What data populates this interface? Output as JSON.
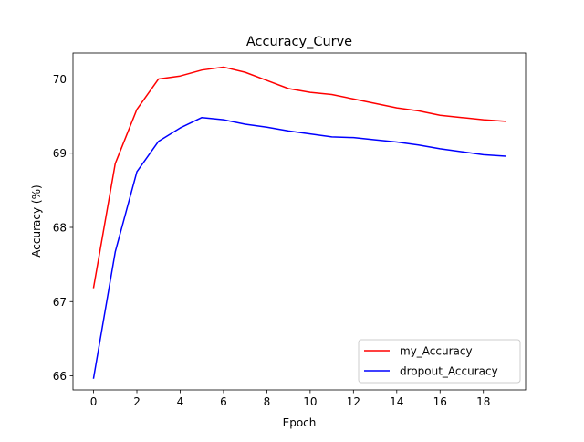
{
  "chart_data": {
    "type": "line",
    "title": "Accuracy_Curve",
    "xlabel": "Epoch",
    "ylabel": "Accuracy (%)",
    "xlim": [
      -0.95,
      19.95
    ],
    "ylim": [
      65.81,
      70.35
    ],
    "xticks": [
      0,
      2,
      4,
      6,
      8,
      10,
      12,
      14,
      16,
      18
    ],
    "yticks": [
      66,
      67,
      68,
      69,
      70
    ],
    "grid": false,
    "legend_position": "lower right",
    "x": [
      0,
      1,
      2,
      3,
      4,
      5,
      6,
      7,
      8,
      9,
      10,
      11,
      12,
      13,
      14,
      15,
      16,
      17,
      18,
      19
    ],
    "series": [
      {
        "name": "my_Accuracy",
        "color": "#ff0000",
        "values": [
          67.19,
          68.86,
          69.59,
          70.0,
          70.04,
          70.12,
          70.16,
          70.09,
          69.98,
          69.87,
          69.82,
          69.79,
          69.73,
          69.67,
          69.61,
          69.57,
          69.51,
          69.48,
          69.45,
          69.43
        ]
      },
      {
        "name": "dropout_Accuracy",
        "color": "#0000ff",
        "values": [
          65.97,
          67.67,
          68.75,
          69.16,
          69.34,
          69.48,
          69.45,
          69.39,
          69.35,
          69.3,
          69.26,
          69.22,
          69.21,
          69.18,
          69.15,
          69.11,
          69.06,
          69.02,
          68.98,
          68.96
        ]
      }
    ]
  }
}
